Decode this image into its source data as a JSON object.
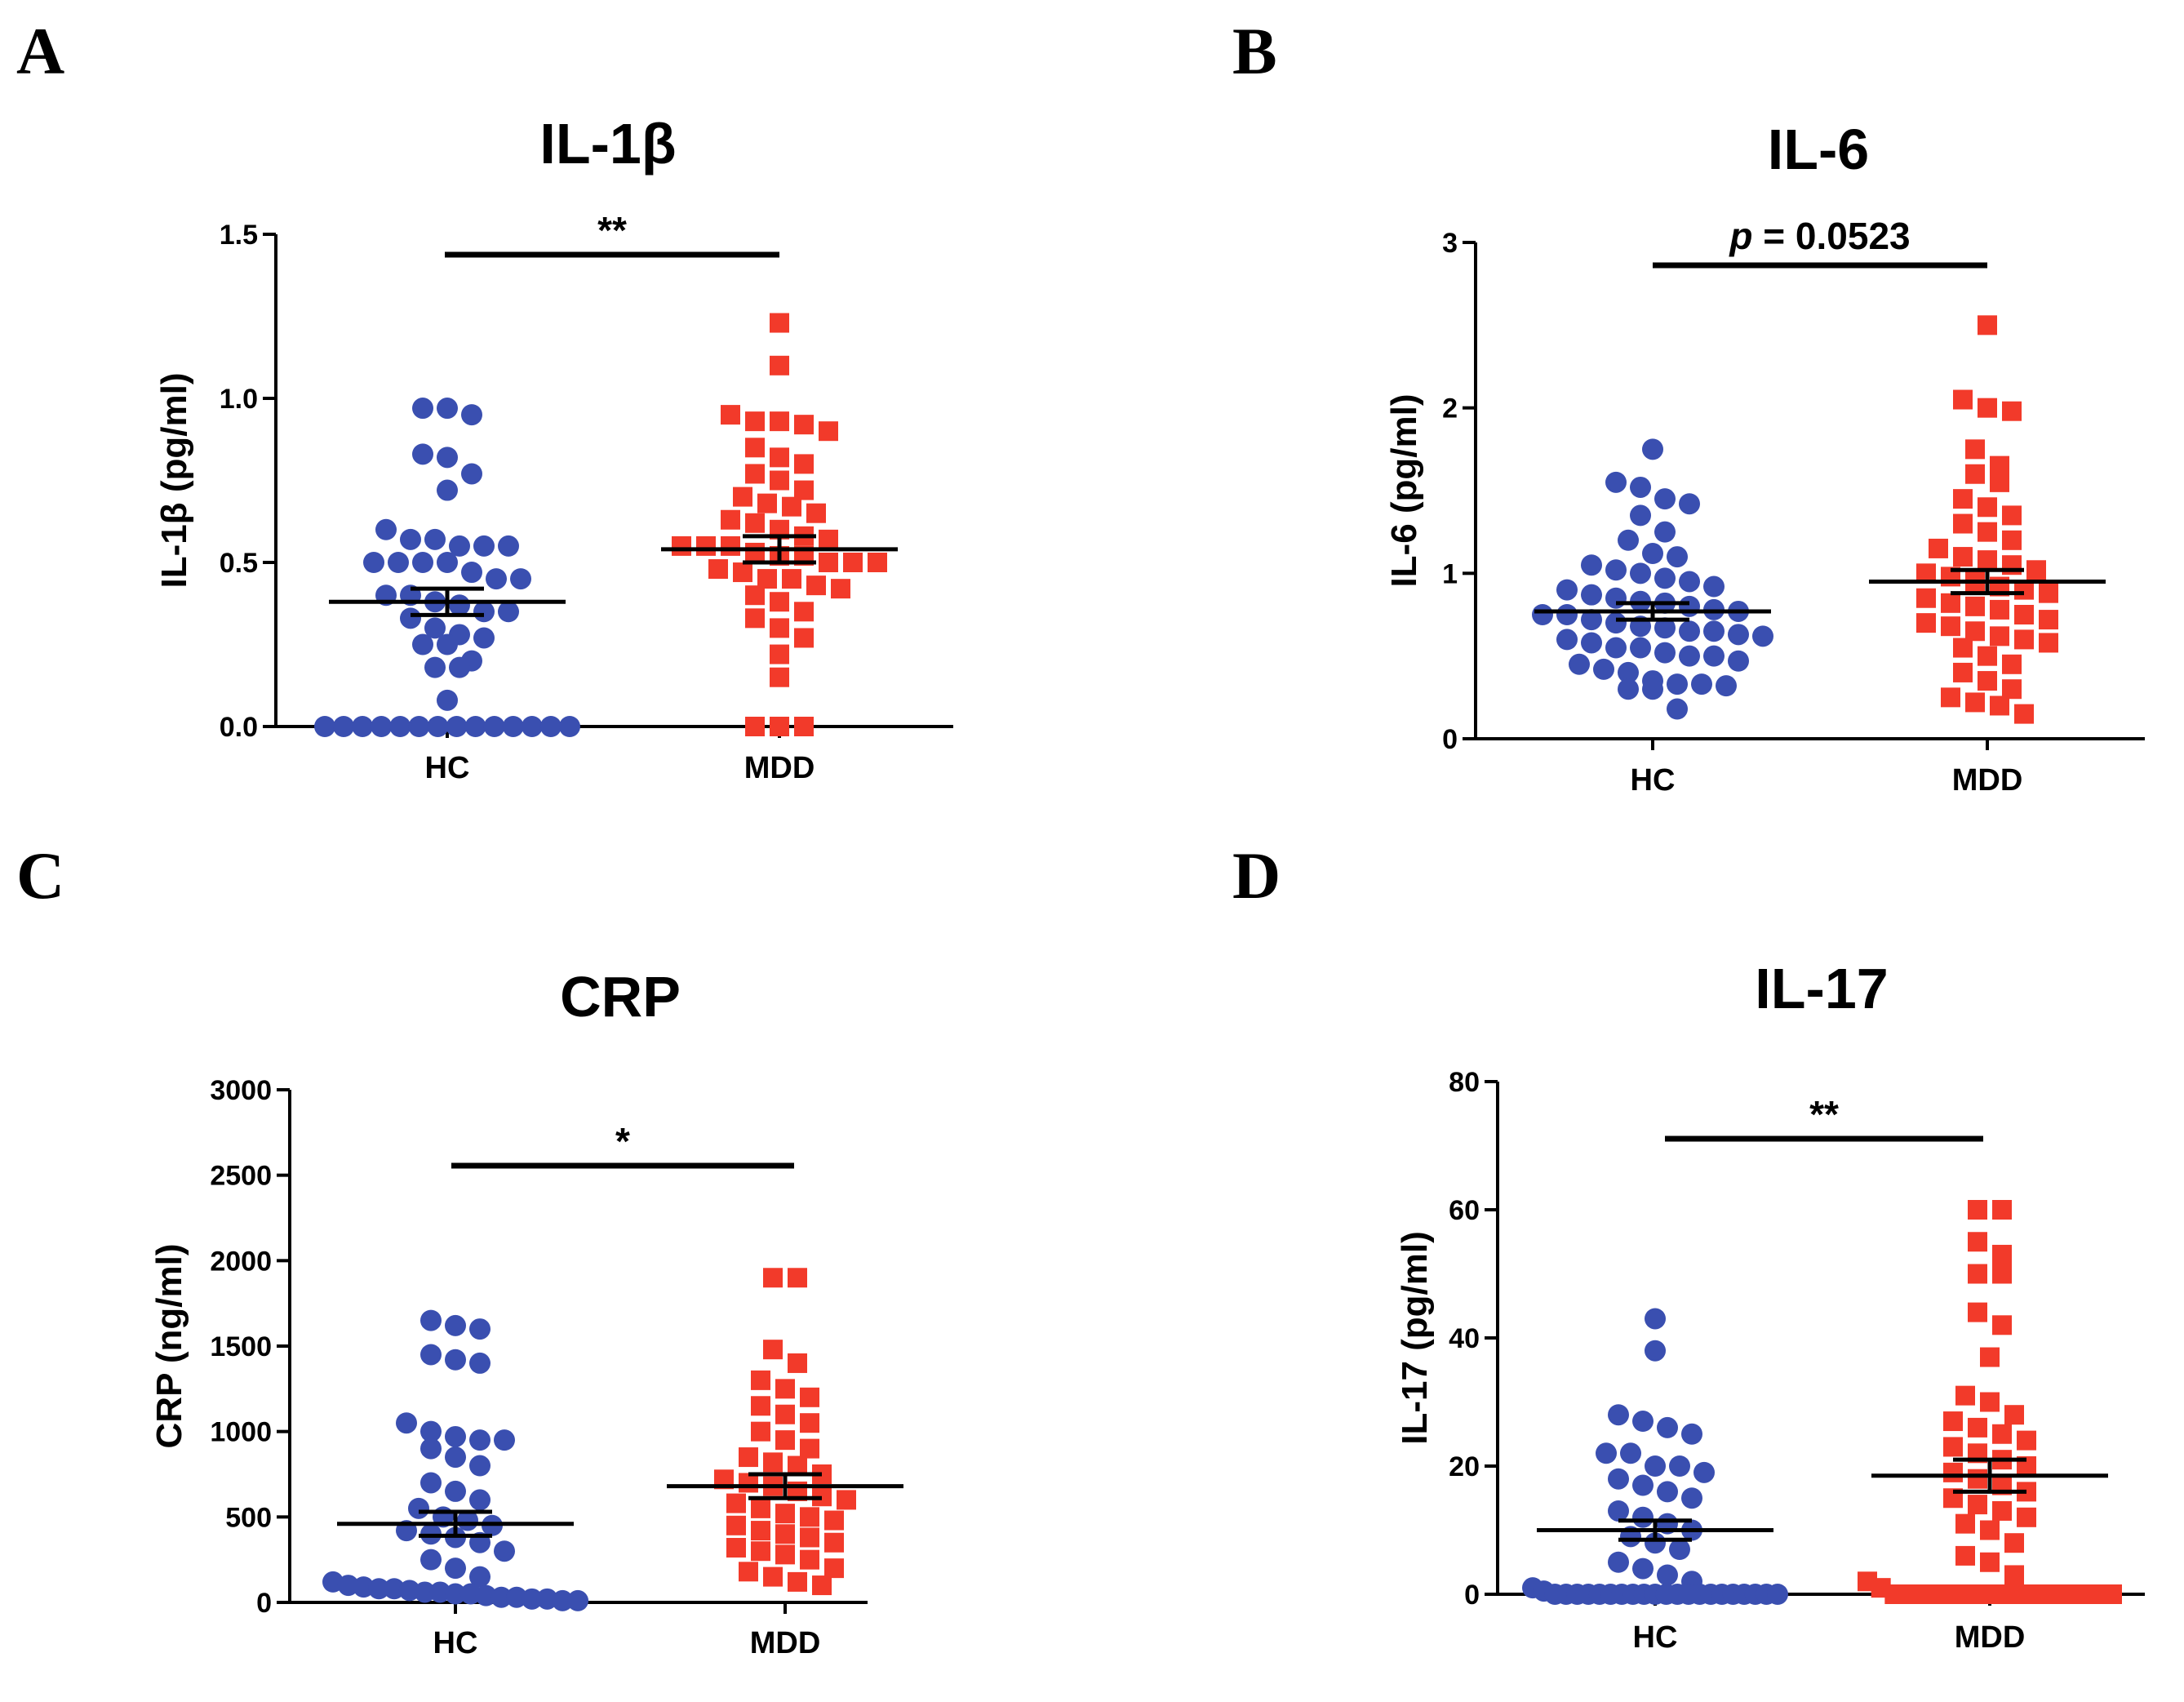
{
  "colors": {
    "hc": "#3a4fb0",
    "mdd": "#f23a2a",
    "axis": "#000000"
  },
  "chart_data": [
    {
      "panel": "A",
      "type": "scatter",
      "title": "IL-1β",
      "ylabel": "IL-1β (pg/ml)",
      "categories": [
        "HC",
        "MDD"
      ],
      "ylim": [
        0,
        1.5
      ],
      "yticks": [
        0,
        0.5,
        1.0,
        1.5
      ],
      "ytick_labels": [
        "0.0",
        "0.5",
        "1.0",
        "1.5"
      ],
      "significance": "**",
      "series": [
        {
          "name": "HC",
          "marker": "circle",
          "mean": 0.38,
          "sem": 0.04,
          "values": [
            0,
            0,
            0,
            0,
            0,
            0,
            0,
            0,
            0,
            0,
            0,
            0,
            0,
            0,
            0.08,
            0.18,
            0.18,
            0.2,
            0.25,
            0.25,
            0.27,
            0.28,
            0.3,
            0.33,
            0.35,
            0.35,
            0.37,
            0.38,
            0.4,
            0.4,
            0.45,
            0.45,
            0.47,
            0.5,
            0.5,
            0.5,
            0.5,
            0.55,
            0.55,
            0.55,
            0.57,
            0.57,
            0.6,
            0.72,
            0.77,
            0.82,
            0.83,
            0.95,
            0.97,
            0.97
          ]
        },
        {
          "name": "MDD",
          "marker": "square",
          "mean": 0.54,
          "sem": 0.04,
          "values": [
            0,
            0,
            0,
            0.15,
            0.22,
            0.27,
            0.3,
            0.33,
            0.35,
            0.38,
            0.4,
            0.42,
            0.43,
            0.45,
            0.45,
            0.47,
            0.48,
            0.5,
            0.5,
            0.5,
            0.52,
            0.52,
            0.53,
            0.55,
            0.55,
            0.55,
            0.57,
            0.58,
            0.6,
            0.62,
            0.63,
            0.65,
            0.67,
            0.68,
            0.7,
            0.72,
            0.75,
            0.77,
            0.8,
            0.82,
            0.85,
            0.9,
            0.92,
            0.93,
            0.93,
            0.95,
            1.1,
            1.23
          ]
        }
      ]
    },
    {
      "panel": "B",
      "type": "scatter",
      "title": "IL-6",
      "ylabel": "IL-6 (pg/ml)",
      "categories": [
        "HC",
        "MDD"
      ],
      "ylim": [
        0,
        3
      ],
      "yticks": [
        0,
        1,
        2,
        3
      ],
      "ytick_labels": [
        "0",
        "1",
        "2",
        "3"
      ],
      "significance_prefix": "p",
      "significance": " = 0.0523",
      "series": [
        {
          "name": "HC",
          "marker": "circle",
          "mean": 0.77,
          "sem": 0.05,
          "values": [
            0.18,
            0.3,
            0.3,
            0.32,
            0.33,
            0.33,
            0.35,
            0.4,
            0.42,
            0.45,
            0.47,
            0.5,
            0.5,
            0.52,
            0.55,
            0.55,
            0.58,
            0.6,
            0.62,
            0.63,
            0.65,
            0.65,
            0.67,
            0.68,
            0.7,
            0.72,
            0.75,
            0.75,
            0.77,
            0.78,
            0.8,
            0.82,
            0.83,
            0.85,
            0.87,
            0.9,
            0.92,
            0.95,
            0.97,
            1.0,
            1.02,
            1.05,
            1.1,
            1.12,
            1.2,
            1.25,
            1.35,
            1.42,
            1.45,
            1.52,
            1.55,
            1.75
          ]
        },
        {
          "name": "MDD",
          "marker": "square",
          "mean": 0.95,
          "sem": 0.07,
          "values": [
            0.15,
            0.2,
            0.22,
            0.25,
            0.3,
            0.35,
            0.4,
            0.45,
            0.5,
            0.55,
            0.58,
            0.6,
            0.62,
            0.65,
            0.68,
            0.7,
            0.72,
            0.75,
            0.78,
            0.8,
            0.82,
            0.85,
            0.88,
            0.9,
            0.92,
            0.95,
            0.98,
            1.0,
            1.02,
            1.05,
            1.08,
            1.1,
            1.15,
            1.2,
            1.25,
            1.3,
            1.35,
            1.4,
            1.45,
            1.55,
            1.6,
            1.65,
            1.75,
            1.98,
            2.0,
            2.05,
            2.5
          ]
        }
      ]
    },
    {
      "panel": "C",
      "type": "scatter",
      "title": "CRP",
      "ylabel": "CRP (ng/ml)",
      "categories": [
        "HC",
        "MDD"
      ],
      "ylim": [
        0,
        3000
      ],
      "yticks": [
        0,
        500,
        1000,
        1500,
        2000,
        2500,
        3000
      ],
      "ytick_labels": [
        "0",
        "500",
        "1000",
        "1500",
        "2000",
        "2500",
        "3000"
      ],
      "significance": "*",
      "series": [
        {
          "name": "HC",
          "marker": "circle",
          "mean": 460,
          "sem": 70,
          "values": [
            10,
            10,
            20,
            20,
            30,
            30,
            40,
            50,
            50,
            60,
            60,
            70,
            80,
            80,
            90,
            100,
            120,
            150,
            200,
            250,
            300,
            350,
            380,
            400,
            420,
            450,
            480,
            500,
            550,
            600,
            650,
            700,
            800,
            850,
            900,
            950,
            950,
            970,
            1000,
            1050,
            1400,
            1420,
            1450,
            1600,
            1620,
            1650
          ]
        },
        {
          "name": "MDD",
          "marker": "square",
          "mean": 680,
          "sem": 70,
          "values": [
            100,
            120,
            150,
            180,
            200,
            250,
            280,
            300,
            320,
            350,
            380,
            400,
            420,
            450,
            480,
            500,
            520,
            550,
            580,
            600,
            620,
            650,
            680,
            700,
            720,
            750,
            800,
            820,
            850,
            900,
            950,
            1000,
            1050,
            1100,
            1150,
            1200,
            1250,
            1300,
            1400,
            1480,
            1900,
            1900
          ]
        }
      ]
    },
    {
      "panel": "D",
      "type": "scatter",
      "title": "IL-17",
      "ylabel": "IL-17 (pg/ml)",
      "categories": [
        "HC",
        "MDD"
      ],
      "ylim": [
        0,
        80
      ],
      "yticks": [
        0,
        20,
        40,
        60,
        80
      ],
      "ytick_labels": [
        "0",
        "20",
        "40",
        "60",
        "80"
      ],
      "significance": "**",
      "series": [
        {
          "name": "HC",
          "marker": "circle",
          "mean": 10,
          "sem": 1.5,
          "values": [
            0,
            0,
            0,
            0,
            0,
            0,
            0,
            0,
            0,
            0,
            0,
            0,
            0,
            0,
            0,
            0,
            0,
            0,
            0,
            0,
            0,
            0.5,
            1,
            2,
            3,
            4,
            5,
            7,
            8,
            9,
            10,
            11,
            12,
            13,
            15,
            16,
            17,
            18,
            19,
            20,
            20,
            22,
            22,
            25,
            26,
            27,
            28,
            38,
            43
          ]
        },
        {
          "name": "MDD",
          "marker": "square",
          "mean": 18.5,
          "sem": 2.5,
          "values": [
            0,
            0,
            0,
            0,
            0,
            0,
            0,
            0,
            0,
            0,
            0,
            0,
            0,
            0,
            0,
            0,
            0,
            1,
            2,
            3,
            5,
            6,
            8,
            10,
            11,
            12,
            13,
            14,
            15,
            16,
            17,
            18,
            19,
            20,
            21,
            22,
            23,
            24,
            25,
            26,
            27,
            28,
            30,
            31,
            37,
            42,
            44,
            50,
            50,
            53,
            55,
            60,
            60
          ]
        }
      ]
    }
  ]
}
